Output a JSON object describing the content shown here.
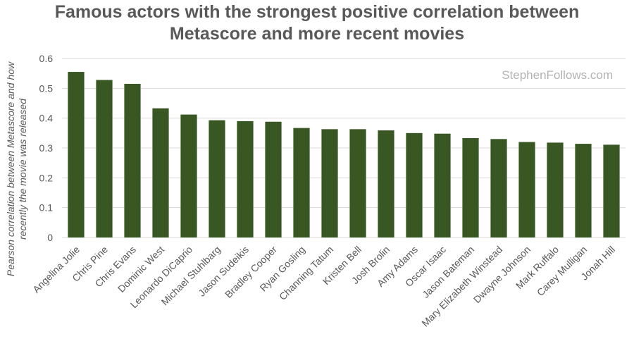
{
  "chart_data": {
    "type": "bar",
    "title_lines": [
      "Famous actors with the strongest positive correlation between",
      "Metascore and more recent movies"
    ],
    "ylabel_lines": [
      "Pearson correlation between Metascore and how",
      "recently the movie was released"
    ],
    "xlabel": "",
    "ylim": [
      0,
      0.6
    ],
    "yticks": [
      0,
      0.1,
      0.2,
      0.3,
      0.4,
      0.5,
      0.6
    ],
    "ytick_labels": [
      "0",
      "0.1",
      "0.2",
      "0.3",
      "0.4",
      "0.5",
      "0.6"
    ],
    "categories": [
      "Angelina Jolie",
      "Chris Pine",
      "Chris Evans",
      "Dominic West",
      "Leonardo DiCaprio",
      "Michael Stuhlbarg",
      "Jason Sudeikis",
      "Bradley Cooper",
      "Ryan Gosling",
      "Channing Tatum",
      "Kristen Bell",
      "Josh Brolin",
      "Amy Adams",
      "Oscar Isaac",
      "Jason Bateman",
      "Mary Elizabeth Winstead",
      "Dwayne Johnson",
      "Mark Ruffalo",
      "Carey Mulligan",
      "Jonah Hill"
    ],
    "values": [
      0.555,
      0.528,
      0.515,
      0.433,
      0.412,
      0.393,
      0.39,
      0.388,
      0.367,
      0.363,
      0.363,
      0.359,
      0.35,
      0.348,
      0.333,
      0.33,
      0.32,
      0.318,
      0.314,
      0.311
    ],
    "grid": true,
    "legend": "none",
    "bar_color": "#385723",
    "grid_color": "#d9d9d9",
    "watermark": "StephenFollows.com"
  }
}
